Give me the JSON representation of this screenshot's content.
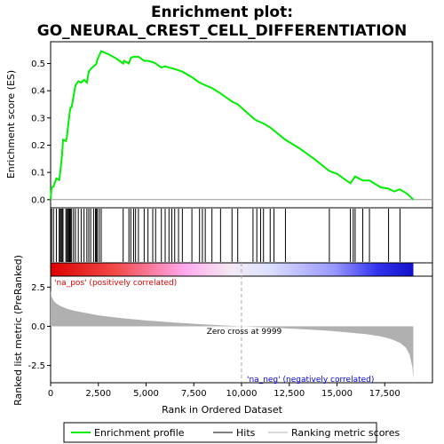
{
  "chart_data": {
    "type": "line",
    "title_line1": "Enrichment plot:",
    "title_line2": "GO_NEURAL_CREST_CELL_DIFFERENTIATION",
    "es_ylabel": "Enrichment score (ES)",
    "metric_ylabel": "Ranked list metric (PreRanked)",
    "xlabel": "Rank in Ordered Dataset",
    "xlim": [
      0,
      20000
    ],
    "es_ylim": [
      -0.03,
      0.58
    ],
    "metric_ylim": [
      -3.6,
      3.2
    ],
    "x_ticks": [
      0,
      2500,
      5000,
      7500,
      10000,
      12500,
      15000,
      17500
    ],
    "x_tick_labels": [
      "0",
      "2,500",
      "5,000",
      "7,500",
      "10,000",
      "12,500",
      "15,000",
      "17,500"
    ],
    "es_ticks": [
      0.0,
      0.1,
      0.2,
      0.3,
      0.4,
      0.5
    ],
    "es_tick_labels": [
      "0.0",
      "0.1",
      "0.2",
      "0.3",
      "0.4",
      "0.5"
    ],
    "metric_ticks": [
      2.5,
      0.0,
      -2.5
    ],
    "metric_tick_labels": [
      "2.5",
      "0.0",
      "-2.5"
    ],
    "n_genes": 19000,
    "zero_cross_rank": 9999,
    "zero_cross_label": "Zero cross at 9999",
    "pos_label": "'na_pos' (positively correlated)",
    "neg_label": "'na_neg' (negatively correlated)",
    "hits": [
      50,
      150,
      300,
      450,
      500,
      550,
      600,
      650,
      800,
      850,
      900,
      950,
      1000,
      1050,
      1100,
      1200,
      1300,
      1450,
      1600,
      1750,
      1900,
      2000,
      2100,
      2250,
      2350,
      2400,
      2450,
      2550,
      2650,
      3800,
      4100,
      4200,
      4350,
      4450,
      4600,
      4900,
      5100,
      5350,
      5500,
      5800,
      6000,
      6200,
      6350,
      6500,
      6700,
      6900,
      7400,
      7800,
      7950,
      8100,
      8450,
      8900,
      9500,
      9800,
      10600,
      10800,
      11000,
      11150,
      11500,
      11700,
      12300,
      14600,
      15700,
      15850,
      15950,
      16350,
      16700,
      17700,
      18300
    ],
    "es_curve": [
      [
        0,
        0.0
      ],
      [
        50,
        0.045
      ],
      [
        150,
        0.048
      ],
      [
        300,
        0.078
      ],
      [
        450,
        0.072
      ],
      [
        500,
        0.1
      ],
      [
        550,
        0.13
      ],
      [
        600,
        0.165
      ],
      [
        650,
        0.22
      ],
      [
        800,
        0.215
      ],
      [
        850,
        0.23
      ],
      [
        900,
        0.26
      ],
      [
        950,
        0.29
      ],
      [
        1000,
        0.32
      ],
      [
        1050,
        0.34
      ],
      [
        1100,
        0.34
      ],
      [
        1200,
        0.38
      ],
      [
        1300,
        0.42
      ],
      [
        1450,
        0.435
      ],
      [
        1600,
        0.43
      ],
      [
        1750,
        0.44
      ],
      [
        1900,
        0.43
      ],
      [
        2000,
        0.47
      ],
      [
        2100,
        0.48
      ],
      [
        2250,
        0.49
      ],
      [
        2350,
        0.495
      ],
      [
        2400,
        0.5
      ],
      [
        2450,
        0.515
      ],
      [
        2550,
        0.53
      ],
      [
        2650,
        0.545
      ],
      [
        3000,
        0.535
      ],
      [
        3400,
        0.52
      ],
      [
        3800,
        0.5
      ],
      [
        3850,
        0.51
      ],
      [
        4100,
        0.5
      ],
      [
        4200,
        0.52
      ],
      [
        4350,
        0.525
      ],
      [
        4600,
        0.525
      ],
      [
        4900,
        0.51
      ],
      [
        5100,
        0.51
      ],
      [
        5350,
        0.505
      ],
      [
        5500,
        0.5
      ],
      [
        5800,
        0.485
      ],
      [
        6000,
        0.49
      ],
      [
        6200,
        0.485
      ],
      [
        6500,
        0.48
      ],
      [
        6900,
        0.47
      ],
      [
        7400,
        0.45
      ],
      [
        7800,
        0.43
      ],
      [
        8100,
        0.42
      ],
      [
        8450,
        0.41
      ],
      [
        8900,
        0.39
      ],
      [
        9500,
        0.36
      ],
      [
        9800,
        0.35
      ],
      [
        10600,
        0.3
      ],
      [
        10800,
        0.29
      ],
      [
        11150,
        0.28
      ],
      [
        11500,
        0.265
      ],
      [
        12300,
        0.22
      ],
      [
        13000,
        0.19
      ],
      [
        13800,
        0.15
      ],
      [
        14600,
        0.105
      ],
      [
        15000,
        0.095
      ],
      [
        15700,
        0.06
      ],
      [
        15850,
        0.075
      ],
      [
        15950,
        0.085
      ],
      [
        16350,
        0.07
      ],
      [
        16700,
        0.07
      ],
      [
        17300,
        0.045
      ],
      [
        17700,
        0.04
      ],
      [
        18000,
        0.03
      ],
      [
        18300,
        0.038
      ],
      [
        18700,
        0.02
      ],
      [
        19000,
        0.0
      ]
    ],
    "metric_curve": [
      [
        0,
        2.3
      ],
      [
        50,
        1.9
      ],
      [
        150,
        1.65
      ],
      [
        300,
        1.45
      ],
      [
        500,
        1.3
      ],
      [
        800,
        1.15
      ],
      [
        1200,
        1.0
      ],
      [
        1700,
        0.88
      ],
      [
        2500,
        0.7
      ],
      [
        3500,
        0.55
      ],
      [
        5000,
        0.37
      ],
      [
        6500,
        0.24
      ],
      [
        8000,
        0.13
      ],
      [
        9999,
        0.0
      ],
      [
        11500,
        -0.08
      ],
      [
        13000,
        -0.17
      ],
      [
        14500,
        -0.28
      ],
      [
        15500,
        -0.38
      ],
      [
        16500,
        -0.5
      ],
      [
        17300,
        -0.65
      ],
      [
        17800,
        -0.8
      ],
      [
        18300,
        -1.05
      ],
      [
        18600,
        -1.35
      ],
      [
        18800,
        -1.8
      ],
      [
        18950,
        -2.6
      ],
      [
        19000,
        -3.4
      ]
    ],
    "legend": {
      "enrichment_profile": "Enrichment profile",
      "hits": "Hits",
      "ranking": "Ranking metric scores"
    },
    "colors": {
      "es_line": "#00ee00",
      "hit": "#000000",
      "metric_fill": "#b0b0b0",
      "pos_text": "#dd0000",
      "neg_text": "#0000dd",
      "zero_line": "#aaaaaa"
    }
  }
}
